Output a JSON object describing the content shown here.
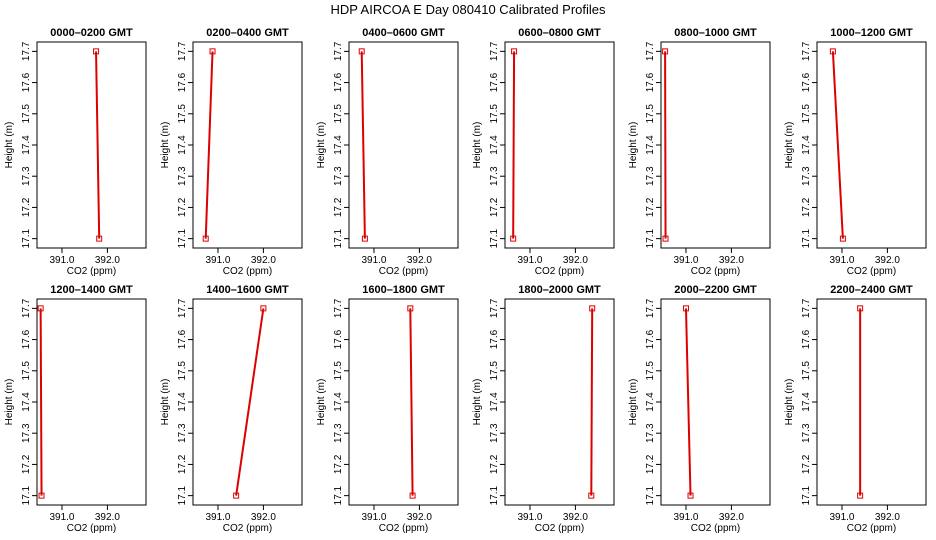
{
  "figure_title": "HDP  AIRCOA E  Day 080410  Calibrated Profiles",
  "chart_data": [
    {
      "type": "line",
      "title": "0000–0200 GMT",
      "xlabel": "CO2 (ppm)",
      "ylabel": "Height (m)",
      "xlim": [
        390.45,
        392.85
      ],
      "ylim": [
        17.07,
        17.73
      ],
      "xticks": [
        391.0,
        392.0
      ],
      "xtick_labels": [
        "391.0",
        "392.0"
      ],
      "yticks": [
        17.1,
        17.2,
        17.3,
        17.4,
        17.5,
        17.6,
        17.7
      ],
      "ytick_labels": [
        "17.1",
        "17.2",
        "17.3",
        "17.4",
        "17.5",
        "17.6",
        "17.7"
      ],
      "points": [
        {
          "x": 391.82,
          "y": 17.1
        },
        {
          "x": 391.75,
          "y": 17.7
        }
      ]
    },
    {
      "type": "line",
      "title": "0200–0400 GMT",
      "xlabel": "CO2 (ppm)",
      "ylabel": "Height (m)",
      "xlim": [
        390.45,
        392.85
      ],
      "ylim": [
        17.07,
        17.73
      ],
      "xticks": [
        391.0,
        392.0
      ],
      "xtick_labels": [
        "391.0",
        "392.0"
      ],
      "yticks": [
        17.1,
        17.2,
        17.3,
        17.4,
        17.5,
        17.6,
        17.7
      ],
      "ytick_labels": [
        "17.1",
        "17.2",
        "17.3",
        "17.4",
        "17.5",
        "17.6",
        "17.7"
      ],
      "points": [
        {
          "x": 390.73,
          "y": 17.1
        },
        {
          "x": 390.88,
          "y": 17.7
        }
      ]
    },
    {
      "type": "line",
      "title": "0400–0600 GMT",
      "xlabel": "CO2 (ppm)",
      "ylabel": "Height (m)",
      "xlim": [
        390.45,
        392.85
      ],
      "ylim": [
        17.07,
        17.73
      ],
      "xticks": [
        391.0,
        392.0
      ],
      "xtick_labels": [
        "391.0",
        "392.0"
      ],
      "yticks": [
        17.1,
        17.2,
        17.3,
        17.4,
        17.5,
        17.6,
        17.7
      ],
      "ytick_labels": [
        "17.1",
        "17.2",
        "17.3",
        "17.4",
        "17.5",
        "17.6",
        "17.7"
      ],
      "points": [
        {
          "x": 390.8,
          "y": 17.1
        },
        {
          "x": 390.73,
          "y": 17.7
        }
      ]
    },
    {
      "type": "line",
      "title": "0600–0800 GMT",
      "xlabel": "CO2 (ppm)",
      "ylabel": "Height (m)",
      "xlim": [
        390.45,
        392.85
      ],
      "ylim": [
        17.07,
        17.73
      ],
      "xticks": [
        391.0,
        392.0
      ],
      "xtick_labels": [
        "391.0",
        "392.0"
      ],
      "yticks": [
        17.1,
        17.2,
        17.3,
        17.4,
        17.5,
        17.6,
        17.7
      ],
      "ytick_labels": [
        "17.1",
        "17.2",
        "17.3",
        "17.4",
        "17.5",
        "17.6",
        "17.7"
      ],
      "points": [
        {
          "x": 390.63,
          "y": 17.1
        },
        {
          "x": 390.65,
          "y": 17.7
        }
      ]
    },
    {
      "type": "line",
      "title": "0800–1000 GMT",
      "xlabel": "CO2 (ppm)",
      "ylabel": "Height (m)",
      "xlim": [
        390.45,
        392.85
      ],
      "ylim": [
        17.07,
        17.73
      ],
      "xticks": [
        391.0,
        392.0
      ],
      "xtick_labels": [
        "391.0",
        "392.0"
      ],
      "yticks": [
        17.1,
        17.2,
        17.3,
        17.4,
        17.5,
        17.6,
        17.7
      ],
      "ytick_labels": [
        "17.1",
        "17.2",
        "17.3",
        "17.4",
        "17.5",
        "17.6",
        "17.7"
      ],
      "points": [
        {
          "x": 390.55,
          "y": 17.1
        },
        {
          "x": 390.54,
          "y": 17.7
        }
      ]
    },
    {
      "type": "line",
      "title": "1000–1200 GMT",
      "xlabel": "CO2 (ppm)",
      "ylabel": "Height (m)",
      "xlim": [
        390.45,
        392.85
      ],
      "ylim": [
        17.07,
        17.73
      ],
      "xticks": [
        391.0,
        392.0
      ],
      "xtick_labels": [
        "391.0",
        "392.0"
      ],
      "yticks": [
        17.1,
        17.2,
        17.3,
        17.4,
        17.5,
        17.6,
        17.7
      ],
      "ytick_labels": [
        "17.1",
        "17.2",
        "17.3",
        "17.4",
        "17.5",
        "17.6",
        "17.7"
      ],
      "points": [
        {
          "x": 391.02,
          "y": 17.1
        },
        {
          "x": 390.8,
          "y": 17.7
        }
      ]
    },
    {
      "type": "line",
      "title": "1200–1400 GMT",
      "xlabel": "CO2 (ppm)",
      "ylabel": "Height (m)",
      "xlim": [
        390.45,
        392.85
      ],
      "ylim": [
        17.07,
        17.73
      ],
      "xticks": [
        391.0,
        392.0
      ],
      "xtick_labels": [
        "391.0",
        "392.0"
      ],
      "yticks": [
        17.1,
        17.2,
        17.3,
        17.4,
        17.5,
        17.6,
        17.7
      ],
      "ytick_labels": [
        "17.1",
        "17.2",
        "17.3",
        "17.4",
        "17.5",
        "17.6",
        "17.7"
      ],
      "points": [
        {
          "x": 390.55,
          "y": 17.1
        },
        {
          "x": 390.53,
          "y": 17.7
        }
      ]
    },
    {
      "type": "line",
      "title": "1400–1600 GMT",
      "xlabel": "CO2 (ppm)",
      "ylabel": "Height (m)",
      "xlim": [
        390.45,
        392.85
      ],
      "ylim": [
        17.07,
        17.73
      ],
      "xticks": [
        391.0,
        392.0
      ],
      "xtick_labels": [
        "391.0",
        "392.0"
      ],
      "yticks": [
        17.1,
        17.2,
        17.3,
        17.4,
        17.5,
        17.6,
        17.7
      ],
      "ytick_labels": [
        "17.1",
        "17.2",
        "17.3",
        "17.4",
        "17.5",
        "17.6",
        "17.7"
      ],
      "points": [
        {
          "x": 391.4,
          "y": 17.1
        },
        {
          "x": 392.0,
          "y": 17.7
        }
      ]
    },
    {
      "type": "line",
      "title": "1600–1800 GMT",
      "xlabel": "CO2 (ppm)",
      "ylabel": "Height (m)",
      "xlim": [
        390.45,
        392.85
      ],
      "ylim": [
        17.07,
        17.73
      ],
      "xticks": [
        391.0,
        392.0
      ],
      "xtick_labels": [
        "391.0",
        "392.0"
      ],
      "yticks": [
        17.1,
        17.2,
        17.3,
        17.4,
        17.5,
        17.6,
        17.7
      ],
      "ytick_labels": [
        "17.1",
        "17.2",
        "17.3",
        "17.4",
        "17.5",
        "17.6",
        "17.7"
      ],
      "points": [
        {
          "x": 391.85,
          "y": 17.1
        },
        {
          "x": 391.8,
          "y": 17.7
        }
      ]
    },
    {
      "type": "line",
      "title": "1800–2000 GMT",
      "xlabel": "CO2 (ppm)",
      "ylabel": "Height (m)",
      "xlim": [
        390.45,
        392.85
      ],
      "ylim": [
        17.07,
        17.73
      ],
      "xticks": [
        391.0,
        392.0
      ],
      "xtick_labels": [
        "391.0",
        "392.0"
      ],
      "yticks": [
        17.1,
        17.2,
        17.3,
        17.4,
        17.5,
        17.6,
        17.7
      ],
      "ytick_labels": [
        "17.1",
        "17.2",
        "17.3",
        "17.4",
        "17.5",
        "17.6",
        "17.7"
      ],
      "points": [
        {
          "x": 392.35,
          "y": 17.1
        },
        {
          "x": 392.37,
          "y": 17.7
        }
      ]
    },
    {
      "type": "line",
      "title": "2000–2200 GMT",
      "xlabel": "CO2 (ppm)",
      "ylabel": "Height (m)",
      "xlim": [
        390.45,
        392.85
      ],
      "ylim": [
        17.07,
        17.73
      ],
      "xticks": [
        391.0,
        392.0
      ],
      "xtick_labels": [
        "391.0",
        "392.0"
      ],
      "yticks": [
        17.1,
        17.2,
        17.3,
        17.4,
        17.5,
        17.6,
        17.7
      ],
      "ytick_labels": [
        "17.1",
        "17.2",
        "17.3",
        "17.4",
        "17.5",
        "17.6",
        "17.7"
      ],
      "points": [
        {
          "x": 391.1,
          "y": 17.1
        },
        {
          "x": 391.0,
          "y": 17.7
        }
      ]
    },
    {
      "type": "line",
      "title": "2200–2400 GMT",
      "xlabel": "CO2 (ppm)",
      "ylabel": "Height (m)",
      "xlim": [
        390.45,
        392.85
      ],
      "ylim": [
        17.07,
        17.73
      ],
      "xticks": [
        391.0,
        392.0
      ],
      "xtick_labels": [
        "391.0",
        "392.0"
      ],
      "yticks": [
        17.1,
        17.2,
        17.3,
        17.4,
        17.5,
        17.6,
        17.7
      ],
      "ytick_labels": [
        "17.1",
        "17.2",
        "17.3",
        "17.4",
        "17.5",
        "17.6",
        "17.7"
      ],
      "points": [
        {
          "x": 391.4,
          "y": 17.1
        },
        {
          "x": 391.4,
          "y": 17.7
        }
      ]
    }
  ],
  "style": {
    "line_color": "#dd0000",
    "axis_color": "#000000",
    "background": "#ffffff"
  }
}
